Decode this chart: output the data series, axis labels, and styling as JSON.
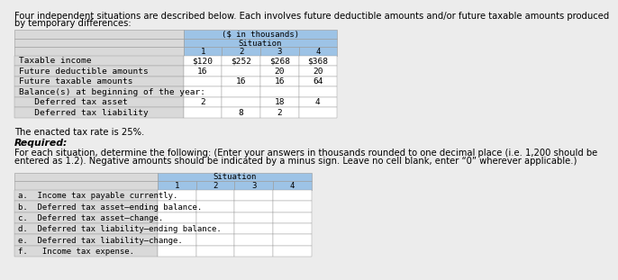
{
  "intro_line1": "Four independent situations are described below. Each involves future deductible amounts and/or future taxable amounts produced",
  "intro_line2": "by temporary differences:",
  "top_table": {
    "header_row1": "($ in thousands)",
    "header_row2": "Situation",
    "col_headers": [
      "1",
      "2",
      "3",
      "4"
    ],
    "row_labels": [
      "Taxable income",
      "Future deductible amounts",
      "Future taxable amounts",
      "Balance(s) at beginning of the year:",
      "   Deferred tax asset",
      "   Deferred tax liability"
    ],
    "data": [
      [
        "$120",
        "$252",
        "$268",
        "$368"
      ],
      [
        "16",
        "",
        "20",
        "20"
      ],
      [
        "",
        "16",
        "16",
        "64"
      ],
      [
        "",
        "",
        "",
        ""
      ],
      [
        "2",
        "",
        "18",
        "4"
      ],
      [
        "",
        "8",
        "2",
        ""
      ]
    ]
  },
  "middle_text1": "The enacted tax rate is 25%.",
  "middle_text2": "Required:",
  "middle_text3a": "For each situation, determine the following: ",
  "middle_text3b": "(Enter your answers in thousands rounded to one decimal place (i.e. 1,200 should be",
  "middle_text3c": "entered as 1.2). Negative amounts should be indicated by a minus sign. Leave no cell blank, enter “0” wherever applicable.)",
  "bottom_table": {
    "header_row": "Situation",
    "col_headers": [
      "1",
      "2",
      "3",
      "4"
    ],
    "row_labels": [
      "a.  Income tax payable currently.",
      "b.  Deferred tax asset—ending balance.",
      "c.  Deferred tax asset—change.",
      "d.  Deferred tax liability—ending balance.",
      "e.  Deferred tax liability—change.",
      "f.   Income tax expense."
    ]
  },
  "bg_color": "#ececec",
  "table_header_color": "#9dc3e6",
  "table_label_color": "#d9d9d9",
  "table_white": "#ffffff",
  "border_color": "#999999",
  "text_color": "#000000",
  "font_size_intro": 7.2,
  "font_size_table": 6.8,
  "font_size_middle": 7.2,
  "font_size_required": 7.8
}
